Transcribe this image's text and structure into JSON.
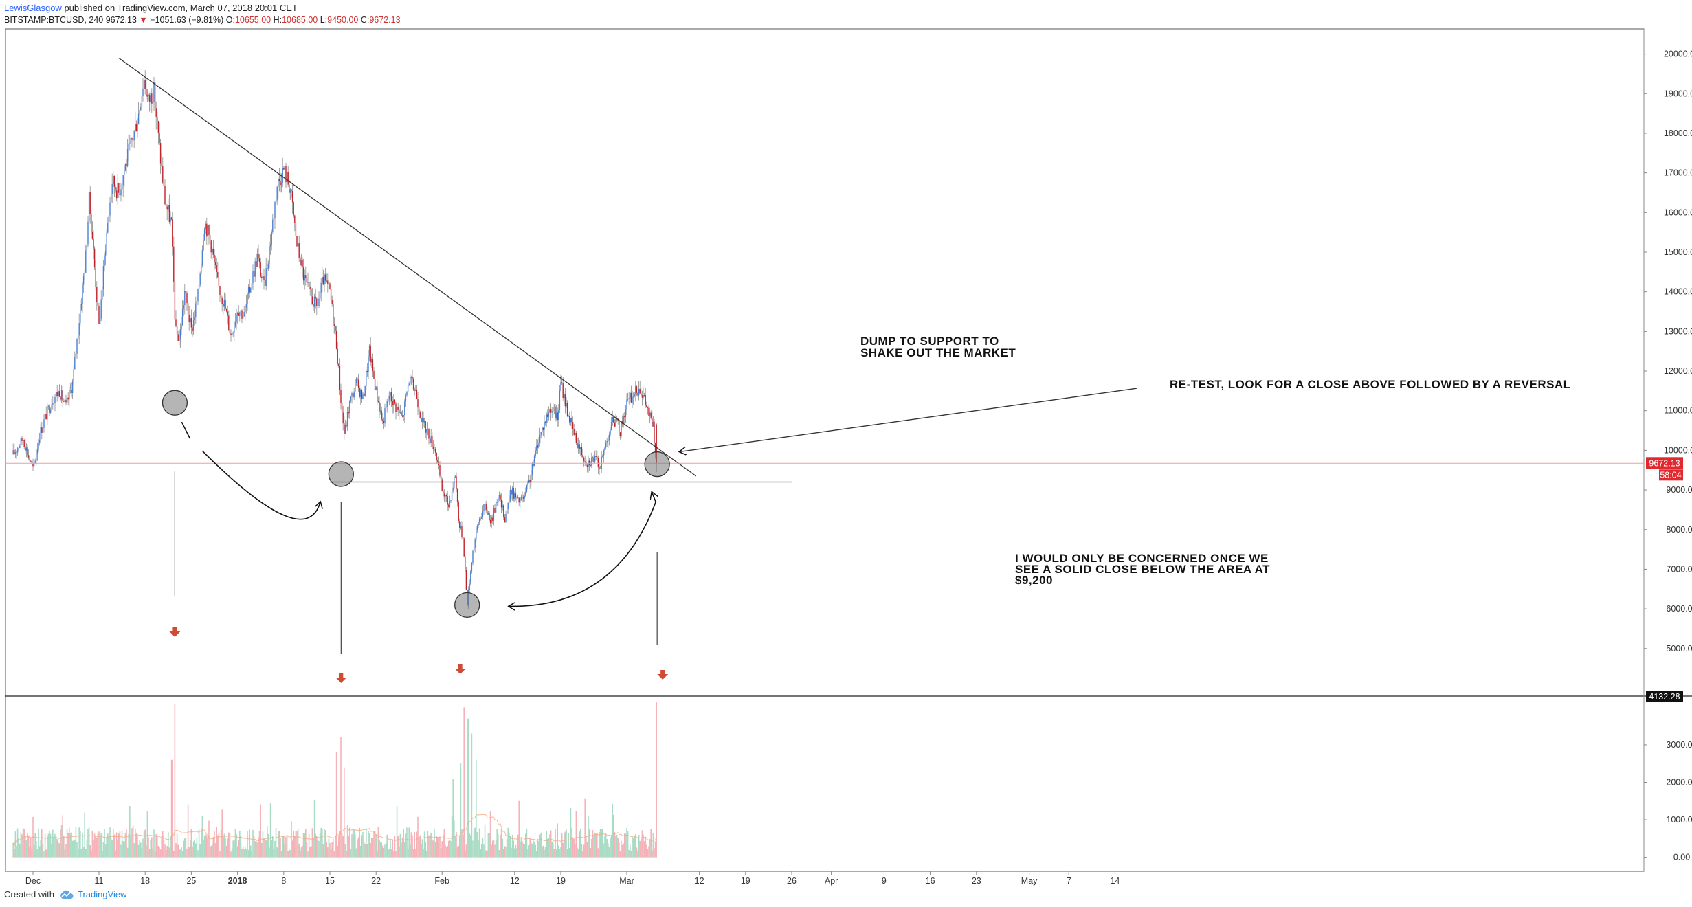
{
  "header": {
    "author": "LewisGlasgow",
    "published": "published on TradingView.com, March 07, 2018 20:01 CET",
    "symbol": "BITSTAMP:BTCUSD, 240",
    "last": "9672.13",
    "change": "−1051.63 (−9.81%)",
    "o_label": "O:",
    "o_value": "10655.00",
    "h_label": "H:",
    "h_value": "10685.00",
    "l_label": "L:",
    "l_value": "9450.00",
    "c_label": "C:",
    "c_value": "9672.13"
  },
  "footer": {
    "created_with": "Created with",
    "brand": "TradingView"
  },
  "colors": {
    "up": "#4a7fd4",
    "down": "#c0222a",
    "vol_up": "#a8dcc4",
    "vol_down": "#f4b3b8",
    "price_line": "#e8a0a5",
    "ma": "#f5a97f"
  },
  "chart_data": {
    "type": "candlestick",
    "symbol": "BITSTAMP:BTCUSD",
    "timeframe": "240",
    "price_axis": {
      "ylim": [
        3800,
        20600
      ],
      "ticks": [
        "20000.00",
        "19000.00",
        "18000.00",
        "17000.00",
        "16000.00",
        "15000.00",
        "14000.00",
        "13000.00",
        "12000.00",
        "11000.00",
        "10000.00",
        "9000.00",
        "8000.00",
        "7000.00",
        "6000.00",
        "5000.00"
      ]
    },
    "volume_axis": {
      "ylim": [
        -300,
        4300
      ],
      "ticks": [
        "3000.00",
        "2000.00",
        "1000.00",
        "0.00"
      ]
    },
    "x_axis": {
      "ticks": [
        {
          "label": "Dec",
          "day": 0,
          "bold": false
        },
        {
          "label": "11",
          "day": 10,
          "bold": false
        },
        {
          "label": "18",
          "day": 17,
          "bold": false
        },
        {
          "label": "25",
          "day": 24,
          "bold": false
        },
        {
          "label": "2018",
          "day": 31,
          "bold": true
        },
        {
          "label": "8",
          "day": 38,
          "bold": false
        },
        {
          "label": "15",
          "day": 45,
          "bold": false
        },
        {
          "label": "22",
          "day": 52,
          "bold": false
        },
        {
          "label": "Feb",
          "day": 62,
          "bold": false
        },
        {
          "label": "12",
          "day": 73,
          "bold": false
        },
        {
          "label": "19",
          "day": 80,
          "bold": false
        },
        {
          "label": "Mar",
          "day": 90,
          "bold": false
        },
        {
          "label": "12",
          "day": 101,
          "bold": false
        },
        {
          "label": "19",
          "day": 108,
          "bold": false
        },
        {
          "label": "26",
          "day": 115,
          "bold": false
        },
        {
          "label": "Apr",
          "day": 121,
          "bold": false
        },
        {
          "label": "9",
          "day": 129,
          "bold": false
        },
        {
          "label": "16",
          "day": 136,
          "bold": false
        },
        {
          "label": "23",
          "day": 143,
          "bold": false
        },
        {
          "label": "May",
          "day": 151,
          "bold": false
        },
        {
          "label": "7",
          "day": 157,
          "bold": false
        },
        {
          "label": "14",
          "day": 164,
          "bold": false
        }
      ]
    },
    "price_path": [
      [
        -3,
        9900
      ],
      [
        -1.5,
        10300
      ],
      [
        0,
        9500
      ],
      [
        1,
        10400
      ],
      [
        2,
        10900
      ],
      [
        3,
        11300
      ],
      [
        4,
        11500
      ],
      [
        5,
        11100
      ],
      [
        6,
        11700
      ],
      [
        7,
        13300
      ],
      [
        8,
        14900
      ],
      [
        8.5,
        16300
      ],
      [
        9,
        15400
      ],
      [
        10,
        13100
      ],
      [
        11,
        15200
      ],
      [
        12,
        16800
      ],
      [
        13,
        16500
      ],
      [
        14,
        17200
      ],
      [
        15,
        17800
      ],
      [
        16,
        18500
      ],
      [
        16.8,
        19400
      ],
      [
        17.5,
        18800
      ],
      [
        18.3,
        19100
      ],
      [
        19,
        17900
      ],
      [
        20,
        16300
      ],
      [
        21,
        15700
      ],
      [
        21.6,
        13000
      ],
      [
        22.2,
        12800
      ],
      [
        23,
        14000
      ],
      [
        24,
        13000
      ],
      [
        25,
        13900
      ],
      [
        26,
        15800
      ],
      [
        27,
        15200
      ],
      [
        28,
        14200
      ],
      [
        29,
        13700
      ],
      [
        30,
        12900
      ],
      [
        31,
        13600
      ],
      [
        32,
        13400
      ],
      [
        33,
        14200
      ],
      [
        34,
        14900
      ],
      [
        35,
        14100
      ],
      [
        36,
        15300
      ],
      [
        37,
        16700
      ],
      [
        38,
        17100
      ],
      [
        39,
        16600
      ],
      [
        40,
        15200
      ],
      [
        41,
        14400
      ],
      [
        42,
        13900
      ],
      [
        43,
        13600
      ],
      [
        44,
        14300
      ],
      [
        45,
        14000
      ],
      [
        46,
        12700
      ],
      [
        46.8,
        11000
      ],
      [
        47.2,
        10400
      ],
      [
        48,
        11200
      ],
      [
        49,
        11700
      ],
      [
        50,
        11300
      ],
      [
        51,
        12500
      ],
      [
        52,
        11500
      ],
      [
        53,
        10700
      ],
      [
        54,
        11400
      ],
      [
        55,
        11100
      ],
      [
        56,
        10800
      ],
      [
        57,
        11800
      ],
      [
        58,
        11500
      ],
      [
        59,
        10700
      ],
      [
        60,
        10400
      ],
      [
        61,
        10000
      ],
      [
        62,
        9000
      ],
      [
        63,
        8600
      ],
      [
        64,
        9400
      ],
      [
        64.6,
        8100
      ],
      [
        65.2,
        7800
      ],
      [
        65.8,
        6100
      ],
      [
        66.6,
        7400
      ],
      [
        67.5,
        8200
      ],
      [
        68.5,
        8600
      ],
      [
        69.5,
        8200
      ],
      [
        70.5,
        8900
      ],
      [
        71.5,
        8300
      ],
      [
        72.5,
        9000
      ],
      [
        73.5,
        8700
      ],
      [
        74.5,
        8800
      ],
      [
        75.5,
        9400
      ],
      [
        76.5,
        10200
      ],
      [
        77.5,
        10700
      ],
      [
        78.5,
        11100
      ],
      [
        79.5,
        10800
      ],
      [
        80,
        11700
      ],
      [
        81,
        11000
      ],
      [
        82,
        10400
      ],
      [
        83,
        10000
      ],
      [
        84,
        9700
      ],
      [
        85,
        9800
      ],
      [
        86,
        9600
      ],
      [
        87,
        10300
      ],
      [
        88,
        10800
      ],
      [
        89,
        10500
      ],
      [
        90,
        11200
      ],
      [
        91,
        11400
      ],
      [
        92,
        11600
      ],
      [
        93,
        11100
      ],
      [
        94,
        10600
      ],
      [
        94.5,
        9700
      ]
    ],
    "volume_spikes": [
      {
        "day": 21.5,
        "value": 4100
      },
      {
        "day": 46.6,
        "value": 3200
      },
      {
        "day": 46.0,
        "value": 2800
      },
      {
        "day": 47.2,
        "value": 2400
      },
      {
        "day": 65.3,
        "value": 4000
      },
      {
        "day": 65.9,
        "value": 3700
      },
      {
        "day": 66.5,
        "value": 3300
      },
      {
        "day": 64.8,
        "value": 2500
      },
      {
        "day": 94.6,
        "value": 4132.28
      },
      {
        "day": 21.1,
        "value": 2600
      },
      {
        "day": 67.2,
        "value": 2600
      },
      {
        "day": 63.7,
        "value": 2100
      }
    ],
    "trendline": {
      "from": {
        "day": 13,
        "price": 19900
      },
      "to": {
        "day": 100.5,
        "price": 9350
      }
    },
    "support_line": {
      "from": {
        "day": 45,
        "price": 9200
      },
      "to": {
        "day": 115,
        "price": 9200
      }
    },
    "last_price": {
      "value": 9672.13,
      "label": "9672.13",
      "countdown": "58:04"
    },
    "volume_marker": {
      "value": 4132.28,
      "label": "4132.28"
    },
    "circles": [
      {
        "day": 21.5,
        "price": 11200
      },
      {
        "day": 46.7,
        "price": 9400
      },
      {
        "day": 65.8,
        "price": 6100
      },
      {
        "day": 94.6,
        "price": 9650
      }
    ],
    "annotations": [
      {
        "id": "dump",
        "lines": [
          "DUMP TO SUPPORT TO",
          "SHAKE OUT THE MARKET"
        ]
      },
      {
        "id": "retest",
        "lines": [
          "RE-TEST, LOOK FOR A CLOSE ABOVE FOLLOWED BY A REVERSAL"
        ]
      },
      {
        "id": "concern",
        "lines": [
          "I WOULD ONLY BE CONCERNED ONCE WE",
          "SEE A SOLID CLOSE BELOW THE AREA AT",
          "$9,200"
        ]
      }
    ]
  }
}
